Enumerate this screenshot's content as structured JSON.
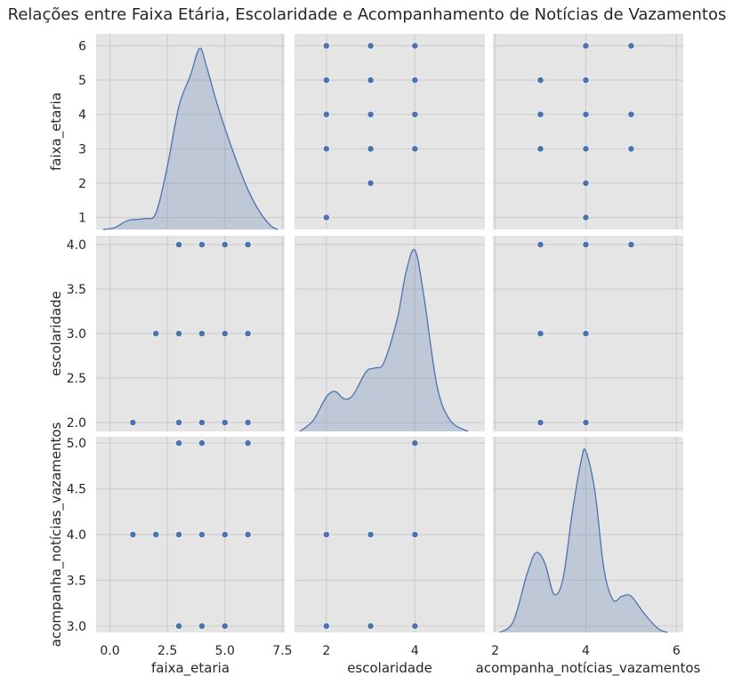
{
  "title": "Relações entre Faixa Etária, Escolaridade e Acompanhamento de Notícias de Vazamentos",
  "colors": {
    "background": "#e5e5e5",
    "grid": "#cfcfcf",
    "point": "#4c72b0",
    "kde_fill": "#4c72b0",
    "kde_line": "#4c72b0"
  },
  "chart_data": {
    "type": "scatter",
    "variables": [
      "faixa_etaria",
      "escolaridade",
      "acompanha_notícias_vazamentos"
    ],
    "axes": {
      "faixa_etaria": {
        "range": [
          -0.6,
          7.6
        ],
        "ticks": [
          0.0,
          2.5,
          5.0,
          7.5
        ],
        "tick_labels": [
          "0.0",
          "2.5",
          "5.0",
          "7.5"
        ]
      },
      "escolaridade": {
        "range": [
          1.28,
          5.58
        ],
        "ticks": [
          2,
          4
        ],
        "tick_labels": [
          "2",
          "4"
        ]
      },
      "acompanha_notícias_vazamentos": {
        "range": [
          1.95,
          6.15
        ],
        "ticks": [
          2,
          4,
          6
        ],
        "tick_labels": [
          "2",
          "4",
          "6"
        ]
      }
    },
    "row_axes": {
      "faixa_etaria": {
        "range": [
          0.65,
          6.35
        ],
        "ticks": [
          1,
          2,
          3,
          4,
          5,
          6
        ],
        "tick_labels": [
          "1",
          "2",
          "3",
          "4",
          "5",
          "6"
        ]
      },
      "escolaridade": {
        "range": [
          1.9,
          4.1
        ],
        "ticks": [
          2.0,
          2.5,
          3.0,
          3.5,
          4.0
        ],
        "tick_labels": [
          "2.0",
          "2.5",
          "3.0",
          "3.5",
          "4.0"
        ]
      },
      "acompanha_notícias_vazamentos": {
        "range": [
          2.93,
          5.07
        ],
        "ticks": [
          3.0,
          3.5,
          4.0,
          4.5,
          5.0
        ],
        "tick_labels": [
          "3.0",
          "3.5",
          "4.0",
          "4.5",
          "5.0"
        ]
      }
    },
    "scatter_panels": [
      {
        "row": "faixa_etaria",
        "col": "escolaridade",
        "points": [
          [
            2,
            6
          ],
          [
            3,
            6
          ],
          [
            4,
            6
          ],
          [
            2,
            5
          ],
          [
            3,
            5
          ],
          [
            4,
            5
          ],
          [
            2,
            4
          ],
          [
            3,
            4
          ],
          [
            4,
            4
          ],
          [
            2,
            3
          ],
          [
            3,
            3
          ],
          [
            4,
            3
          ],
          [
            3,
            2
          ],
          [
            2,
            1
          ]
        ]
      },
      {
        "row": "faixa_etaria",
        "col": "acompanha_notícias_vazamentos",
        "points": [
          [
            4,
            6
          ],
          [
            5,
            6
          ],
          [
            3,
            5
          ],
          [
            4,
            5
          ],
          [
            3,
            4
          ],
          [
            4,
            4
          ],
          [
            5,
            4
          ],
          [
            3,
            3
          ],
          [
            4,
            3
          ],
          [
            5,
            3
          ],
          [
            4,
            2
          ],
          [
            4,
            1
          ]
        ]
      },
      {
        "row": "escolaridade",
        "col": "faixa_etaria",
        "points": [
          [
            3,
            4
          ],
          [
            4,
            4
          ],
          [
            5,
            4
          ],
          [
            6,
            4
          ],
          [
            2,
            3
          ],
          [
            3,
            3
          ],
          [
            4,
            3
          ],
          [
            5,
            3
          ],
          [
            6,
            3
          ],
          [
            1,
            2
          ],
          [
            3,
            2
          ],
          [
            4,
            2
          ],
          [
            5,
            2
          ],
          [
            6,
            2
          ]
        ]
      },
      {
        "row": "escolaridade",
        "col": "acompanha_notícias_vazamentos",
        "points": [
          [
            3,
            4
          ],
          [
            4,
            4
          ],
          [
            5,
            4
          ],
          [
            3,
            3
          ],
          [
            4,
            3
          ],
          [
            3,
            2
          ],
          [
            4,
            2
          ]
        ]
      },
      {
        "row": "acompanha_notícias_vazamentos",
        "col": "faixa_etaria",
        "points": [
          [
            3,
            5
          ],
          [
            4,
            5
          ],
          [
            6,
            5
          ],
          [
            1,
            4
          ],
          [
            2,
            4
          ],
          [
            3,
            4
          ],
          [
            4,
            4
          ],
          [
            5,
            4
          ],
          [
            6,
            4
          ],
          [
            3,
            3
          ],
          [
            4,
            3
          ],
          [
            5,
            3
          ]
        ]
      },
      {
        "row": "acompanha_notícias_vazamentos",
        "col": "escolaridade",
        "points": [
          [
            4,
            5
          ],
          [
            2,
            4
          ],
          [
            3,
            4
          ],
          [
            4,
            4
          ],
          [
            2,
            3
          ],
          [
            3,
            3
          ],
          [
            4,
            3
          ]
        ]
      }
    ],
    "kde_panels": [
      {
        "variable": "faixa_etaria",
        "curve": [
          [
            -0.3,
            0.0
          ],
          [
            0.2,
            0.01
          ],
          [
            0.8,
            0.05
          ],
          [
            1.5,
            0.06
          ],
          [
            2.0,
            0.09
          ],
          [
            2.5,
            0.35
          ],
          [
            3.0,
            0.68
          ],
          [
            3.5,
            0.85
          ],
          [
            3.9,
            1.0
          ],
          [
            4.2,
            0.9
          ],
          [
            4.6,
            0.72
          ],
          [
            5.0,
            0.56
          ],
          [
            5.5,
            0.38
          ],
          [
            6.0,
            0.22
          ],
          [
            6.5,
            0.1
          ],
          [
            7.0,
            0.02
          ],
          [
            7.3,
            0.0
          ]
        ]
      },
      {
        "variable": "escolaridade",
        "curve": [
          [
            1.4,
            0.0
          ],
          [
            1.7,
            0.06
          ],
          [
            2.0,
            0.19
          ],
          [
            2.2,
            0.22
          ],
          [
            2.4,
            0.18
          ],
          [
            2.6,
            0.2
          ],
          [
            2.9,
            0.33
          ],
          [
            3.1,
            0.35
          ],
          [
            3.3,
            0.38
          ],
          [
            3.6,
            0.62
          ],
          [
            3.8,
            0.88
          ],
          [
            4.0,
            1.0
          ],
          [
            4.2,
            0.75
          ],
          [
            4.5,
            0.25
          ],
          [
            4.8,
            0.06
          ],
          [
            5.2,
            0.0
          ]
        ]
      },
      {
        "variable": "acompanha_notícias_vazamentos",
        "curve": [
          [
            2.1,
            0.0
          ],
          [
            2.4,
            0.06
          ],
          [
            2.7,
            0.32
          ],
          [
            2.9,
            0.44
          ],
          [
            3.1,
            0.38
          ],
          [
            3.3,
            0.21
          ],
          [
            3.5,
            0.3
          ],
          [
            3.7,
            0.66
          ],
          [
            3.9,
            0.95
          ],
          [
            4.0,
            1.0
          ],
          [
            4.2,
            0.78
          ],
          [
            4.4,
            0.35
          ],
          [
            4.6,
            0.18
          ],
          [
            4.8,
            0.2
          ],
          [
            5.0,
            0.2
          ],
          [
            5.3,
            0.1
          ],
          [
            5.6,
            0.02
          ],
          [
            5.8,
            0.0
          ]
        ]
      }
    ],
    "grid": true,
    "kde_density_ylim": [
      0,
      1.08
    ]
  }
}
